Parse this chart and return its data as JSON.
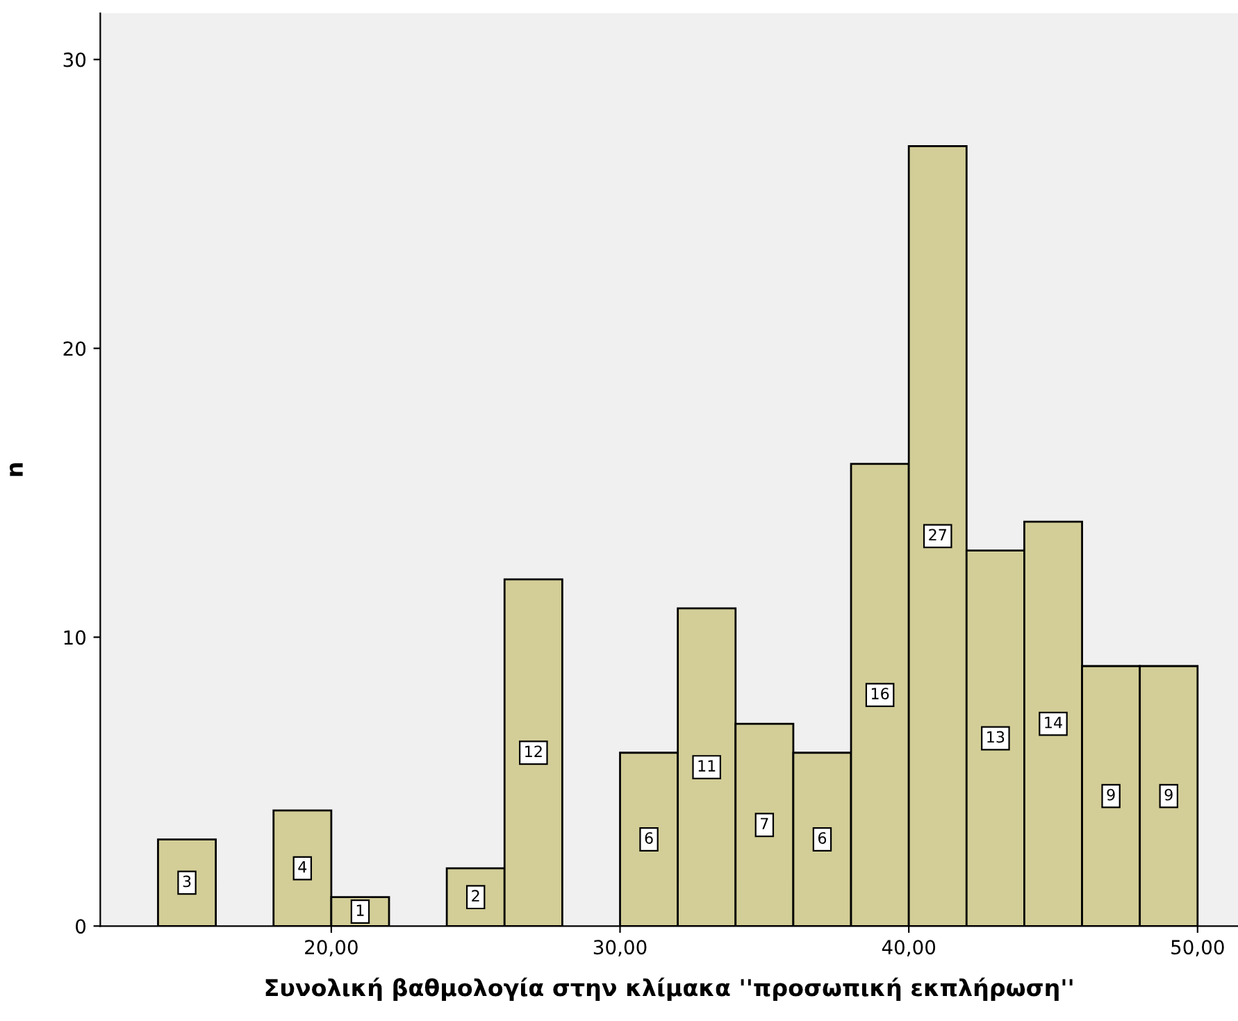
{
  "chart_data": {
    "type": "histogram",
    "xlabel": "Συνολική βαθμολογία στην κλίμακα ''προσωπική εκπλήρωση''",
    "ylabel": "n",
    "bins": [
      14,
      16,
      18,
      20,
      22,
      24,
      26,
      28,
      30,
      32,
      34,
      36,
      38,
      40,
      42,
      44,
      46,
      48,
      50
    ],
    "values": [
      3,
      0,
      4,
      1,
      0,
      2,
      12,
      0,
      6,
      11,
      7,
      6,
      16,
      27,
      13,
      14,
      9,
      9
    ],
    "value_labels": [
      "3",
      null,
      "4",
      "1",
      null,
      "2",
      "12",
      null,
      "6",
      "11",
      "7",
      "6",
      "16",
      "27",
      "13",
      "14",
      "9",
      "9"
    ],
    "color": "#d3ce97",
    "xlim": [
      12,
      51.4
    ],
    "xticks": [
      {
        "value": 20,
        "label": "20,00"
      },
      {
        "value": 30,
        "label": "30,00"
      },
      {
        "value": 40,
        "label": "40,00"
      },
      {
        "value": 50,
        "label": "50,00"
      }
    ],
    "ylim": [
      0,
      31.6
    ],
    "yticks": [
      0,
      10,
      20,
      30
    ],
    "grid": false
  }
}
